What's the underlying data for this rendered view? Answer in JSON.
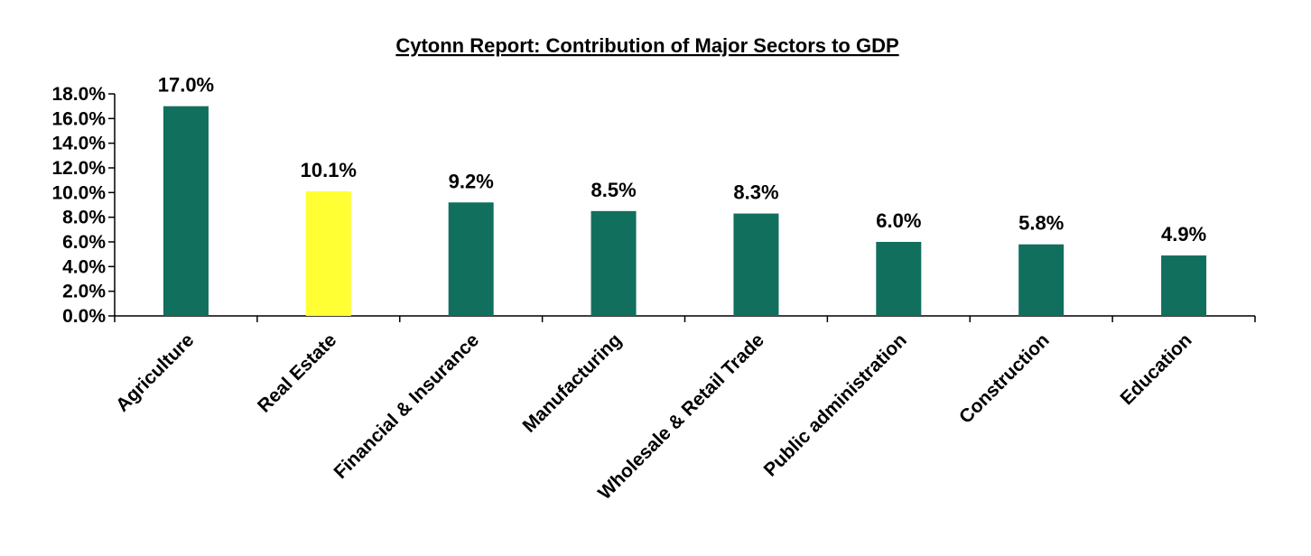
{
  "chart_data": {
    "type": "bar",
    "title": "Cytonn Report: Contribution of Major Sectors to GDP",
    "xlabel": "",
    "ylabel": "",
    "categories": [
      "Agriculture",
      "Real Estate",
      "Financial & Insurance",
      "Manufacturing",
      "Wholesale & Retail Trade",
      "Public administration",
      "Construction",
      "Education"
    ],
    "values": [
      17.0,
      10.1,
      9.2,
      8.5,
      8.3,
      6.0,
      5.8,
      4.9
    ],
    "data_labels": [
      "17.0%",
      "10.1%",
      "9.2%",
      "8.5%",
      "8.3%",
      "6.0%",
      "5.8%",
      "4.9%"
    ],
    "ylim": [
      0,
      18
    ],
    "y_ticks": [
      0,
      2,
      4,
      6,
      8,
      10,
      12,
      14,
      16,
      18
    ],
    "y_tick_labels": [
      "0.0%",
      "2.0%",
      "4.0%",
      "6.0%",
      "8.0%",
      "10.0%",
      "12.0%",
      "14.0%",
      "16.0%",
      "18.0%"
    ],
    "grid": false,
    "legend": "none",
    "colors": {
      "default_bar": "#116f5e",
      "highlight_bar": "#ffff33",
      "axis": "#000000",
      "text": "#000000"
    },
    "highlight_category": "Real Estate"
  }
}
